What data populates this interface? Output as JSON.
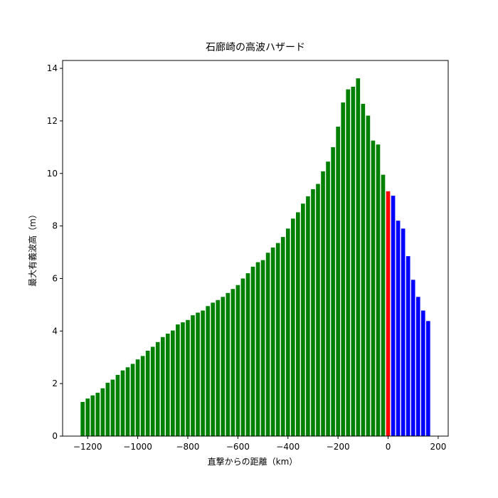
{
  "chart_data": {
    "type": "bar",
    "title": "石廊崎の高波ハザード",
    "x_label": "直撃からの距離（km）",
    "y_label": "最大有義波高（m）",
    "xlim": [
      -1300,
      240
    ],
    "ylim": [
      0,
      14.3
    ],
    "xticks": [
      {
        "value": -1200,
        "label": "−1200"
      },
      {
        "value": -1000,
        "label": "−1000"
      },
      {
        "value": -800,
        "label": "−800"
      },
      {
        "value": -600,
        "label": "−600"
      },
      {
        "value": -400,
        "label": "−400"
      },
      {
        "value": -200,
        "label": "−200"
      },
      0,
      200
    ],
    "yticks": [
      0,
      2,
      4,
      6,
      8,
      10,
      12,
      14
    ],
    "bar_width": 16,
    "series": [
      {
        "color": "green",
        "x": [
          -1220,
          -1200,
          -1180,
          -1160,
          -1140,
          -1120,
          -1100,
          -1080,
          -1060,
          -1040,
          -1020,
          -1000,
          -980,
          -960,
          -940,
          -920,
          -900,
          -880,
          -860,
          -840,
          -820,
          -800,
          -780,
          -760,
          -740,
          -720,
          -700,
          -680,
          -660,
          -640,
          -620,
          -600,
          -580,
          -560,
          -540,
          -520,
          -500,
          -480,
          -460,
          -440,
          -420,
          -400,
          -380,
          -360,
          -340,
          -320,
          -300,
          -280,
          -260,
          -240,
          -220,
          -200,
          -180,
          -160,
          -140,
          -120,
          -100,
          -80,
          -60,
          -40,
          -20
        ],
        "values": [
          1.3,
          1.43,
          1.55,
          1.65,
          1.82,
          2.03,
          2.15,
          2.33,
          2.5,
          2.62,
          2.75,
          2.92,
          3.05,
          3.25,
          3.4,
          3.58,
          3.77,
          3.9,
          4.02,
          4.25,
          4.33,
          4.42,
          4.6,
          4.7,
          4.78,
          4.95,
          5.08,
          5.18,
          5.3,
          5.45,
          5.6,
          5.75,
          6.0,
          6.2,
          6.45,
          6.62,
          6.7,
          6.98,
          7.18,
          7.35,
          7.58,
          7.9,
          8.28,
          8.52,
          8.85,
          9.13,
          9.4,
          9.6,
          10.08,
          10.45,
          11.0,
          11.78,
          12.7,
          13.2,
          13.3,
          13.62,
          12.65,
          12.2,
          11.25,
          11.1,
          9.95
        ]
      },
      {
        "color": "red",
        "x": [
          0
        ],
        "values": [
          9.32
        ]
      },
      {
        "color": "blue",
        "x": [
          20,
          40,
          60,
          80,
          100,
          120,
          140,
          160
        ],
        "values": [
          9.15,
          8.2,
          7.9,
          6.85,
          5.95,
          5.3,
          4.78,
          4.38
        ]
      }
    ]
  }
}
